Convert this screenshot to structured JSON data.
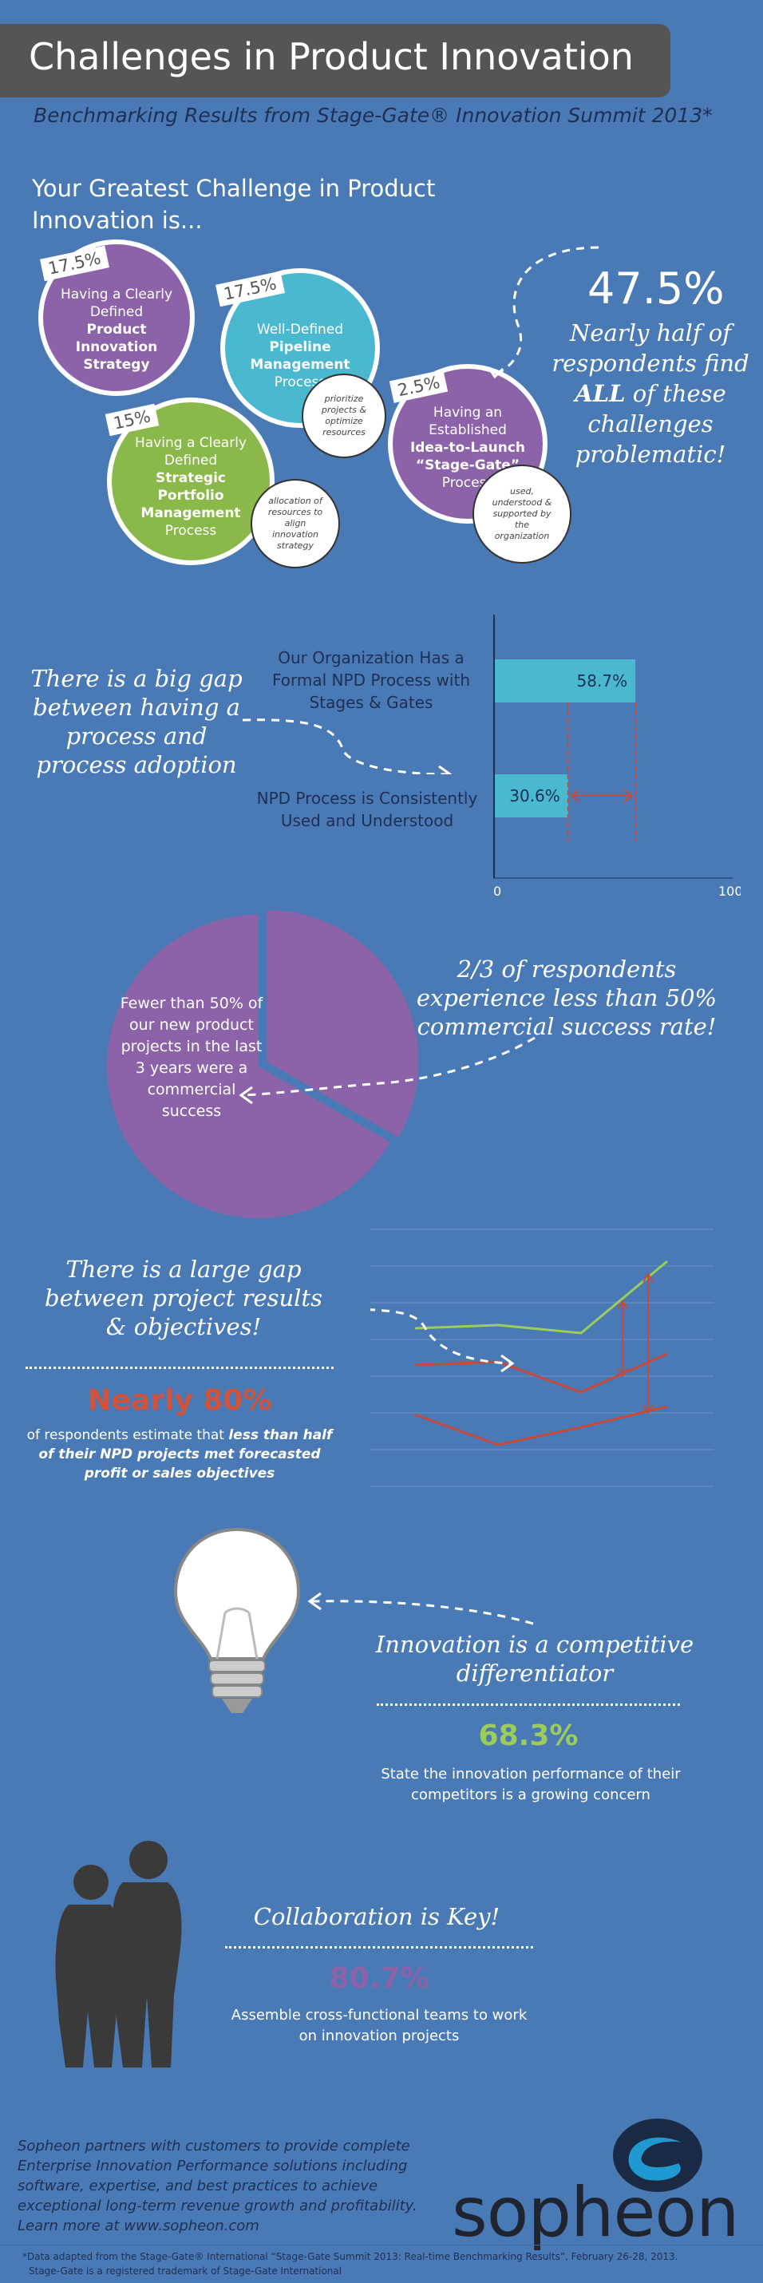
{
  "header": {
    "title": "Challenges in Product Innovation",
    "subtitle": "Benchmarking Results from Stage-Gate® Innovation Summit 2013*"
  },
  "challenges": {
    "heading": "Your Greatest Challenge in Product Innovation is...",
    "items": [
      {
        "pct": "17.5%",
        "pre": "Having a Clearly Defined",
        "bold": "Product Innovation Strategy",
        "post": "",
        "color": "#8c63a8"
      },
      {
        "pct": "17.5%",
        "pre": "Well-Defined",
        "bold": "Pipeline Management",
        "post": "Process",
        "color": "#4ab8cf",
        "note": "prioritize projects & optimize resources"
      },
      {
        "pct": "15%",
        "pre": "Having a Clearly Defined",
        "bold": "Strategic Portfolio Management",
        "post": "Process",
        "color": "#8ab84a",
        "note": "allocation of resources to align innovation strategy"
      },
      {
        "pct": "2.5%",
        "pre": "Having an Established",
        "bold": "Idea-to-Launch “Stage-Gate”",
        "post": "Process",
        "color": "#8c63a8",
        "note": "used, understood & supported by the organization"
      }
    ],
    "big_pct": "47.5%",
    "callout_pre": "Nearly half of respondents find",
    "callout_bold": "ALL",
    "callout_post": "of these challenges problematic!"
  },
  "gap": {
    "callout": "There is a big gap between having a process and process adoption",
    "bar1_label": "Our Organization Has a Formal NPD Process with Stages & Gates",
    "bar2_label": "NPD Process is Consistently Used and Understood",
    "axis_min": "0",
    "axis_max": "100"
  },
  "chart_data": [
    {
      "type": "bar",
      "categories": [
        "Our Organization Has a Formal NPD Process with Stages & Gates",
        "NPD Process is Consistently Used and Understood"
      ],
      "values": [
        58.7,
        30.6
      ],
      "value_labels": [
        "58.7%",
        "30.6%"
      ],
      "xlim": [
        0,
        100
      ],
      "bar_color": "#4ab8cf",
      "orientation": "horizontal"
    },
    {
      "type": "pie",
      "slices": [
        {
          "value": 66.7,
          "color": "#8c63a8"
        },
        {
          "value": 33.3,
          "color": "#8c63a8"
        }
      ]
    }
  ],
  "success": {
    "pie_text": "Fewer than 50% of our new product projects in the last 3 years were a commercial success",
    "callout": "2/3 of respondents experience less than 50% commercial success rate!"
  },
  "results": {
    "callout": "There is a large gap between project results & objectives!",
    "stat": "Nearly 80%",
    "stat_color": "#d0533d",
    "desc_pre": "of respondents estimate that",
    "desc_bold": "less than half of their NPD projects met forecasted profit or sales objectives"
  },
  "differentiator": {
    "callout": "Innovation is a competitive differentiator",
    "stat": "68.3%",
    "stat_color": "#9ccc5a",
    "desc": "State the innovation performance of their competitors is a growing concern"
  },
  "collaboration": {
    "callout": "Collaboration is Key!",
    "stat": "80.7%",
    "stat_color": "#8c63a8",
    "desc": "Assemble cross-functional teams to work on innovation projects"
  },
  "footer": {
    "blurb": "Sopheon partners with customers to provide complete Enterprise Innovation Performance solutions including software, expertise, and best practices to achieve exceptional long-term revenue growth and profitability. Learn more at www.sopheon.com",
    "logo": "sopheon",
    "note1": "*Data adapted from the Stage-Gate® International “Stage-Gate Summit 2013: Real-time Benchmarking Results”, February 26-28, 2013.",
    "note2": "Stage-Gate is a registered trademark of Stage-Gate International"
  }
}
